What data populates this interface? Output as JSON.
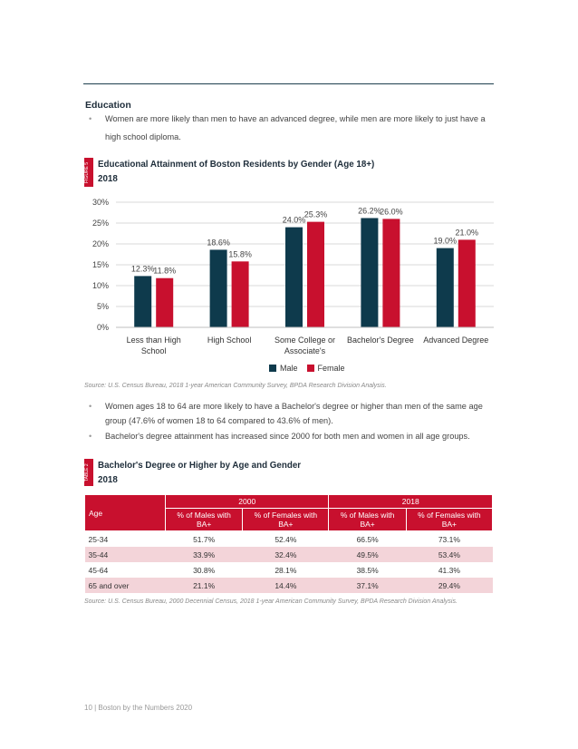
{
  "section": {
    "heading": "Education",
    "bullets": [
      "Women are more likely than men to have an advanced degree, while men are more likely to just have a high school diploma."
    ]
  },
  "figure1": {
    "tag": "FIGURE 5",
    "title_line1": "Educational Attainment of Boston Residents by Gender (Age 18+)",
    "title_line2": "2018",
    "source": "Source: U.S. Census Bureau, 2018 1-year American Community Survey, BPDA Research Division Analysis."
  },
  "chart_data": {
    "type": "bar",
    "categories": [
      "Less than High School",
      "High School",
      "Some College or Associate's",
      "Bachelor's Degree",
      "Advanced Degree"
    ],
    "category_lines": [
      [
        "Less than High",
        "School"
      ],
      [
        "High School"
      ],
      [
        "Some College or",
        "Associate's"
      ],
      [
        "Bachelor's Degree"
      ],
      [
        "Advanced Degree"
      ]
    ],
    "series": [
      {
        "name": "Male",
        "values": [
          12.3,
          18.6,
          24.0,
          26.2,
          19.0
        ],
        "labels": [
          "12.3%",
          "18.6%",
          "24.0%",
          "26.2%",
          "19.0%"
        ],
        "color": "#0e3a4c"
      },
      {
        "name": "Female",
        "values": [
          11.8,
          15.8,
          25.3,
          26.0,
          21.0
        ],
        "labels": [
          "11.8%",
          "15.8%",
          "25.3%",
          "26.0%",
          "21.0%"
        ],
        "color": "#c8102e"
      }
    ],
    "ylim": [
      0,
      30
    ],
    "yticks": [
      "0%",
      "5%",
      "10%",
      "15%",
      "20%",
      "25%",
      "30%"
    ],
    "grid": true,
    "legend": "bottom"
  },
  "section2": {
    "bullets": [
      "Women ages 18 to 64 are more likely to have a Bachelor's degree or higher than men of the same age group (47.6% of women 18 to 64 compared to 43.6% of men).",
      "Bachelor's degree attainment has increased since 2000 for both men and women in all age groups."
    ]
  },
  "figure2": {
    "tag": "TABLE 2",
    "title_line1": "Bachelor's Degree or Higher by Age and Gender",
    "title_line2": "2018",
    "years": [
      "2000",
      "2018"
    ],
    "age_header": "Age",
    "col_headers": [
      "% of Males with BA+",
      "% of Females with BA+",
      "% of Males with BA+",
      "% of Females with BA+"
    ],
    "rows": [
      [
        "25-34",
        "51.7%",
        "52.4%",
        "66.5%",
        "73.1%"
      ],
      [
        "35-44",
        "33.9%",
        "32.4%",
        "49.5%",
        "53.4%"
      ],
      [
        "45-64",
        "30.8%",
        "28.1%",
        "38.5%",
        "41.3%"
      ],
      [
        "65 and over",
        "21.1%",
        "14.4%",
        "37.1%",
        "29.4%"
      ]
    ],
    "source": "Source: U.S. Census Bureau, 2000 Decennial Census, 2018 1-year American Community Survey, BPDA Research Division Analysis."
  },
  "footer": "10 | Boston by the Numbers 2020"
}
